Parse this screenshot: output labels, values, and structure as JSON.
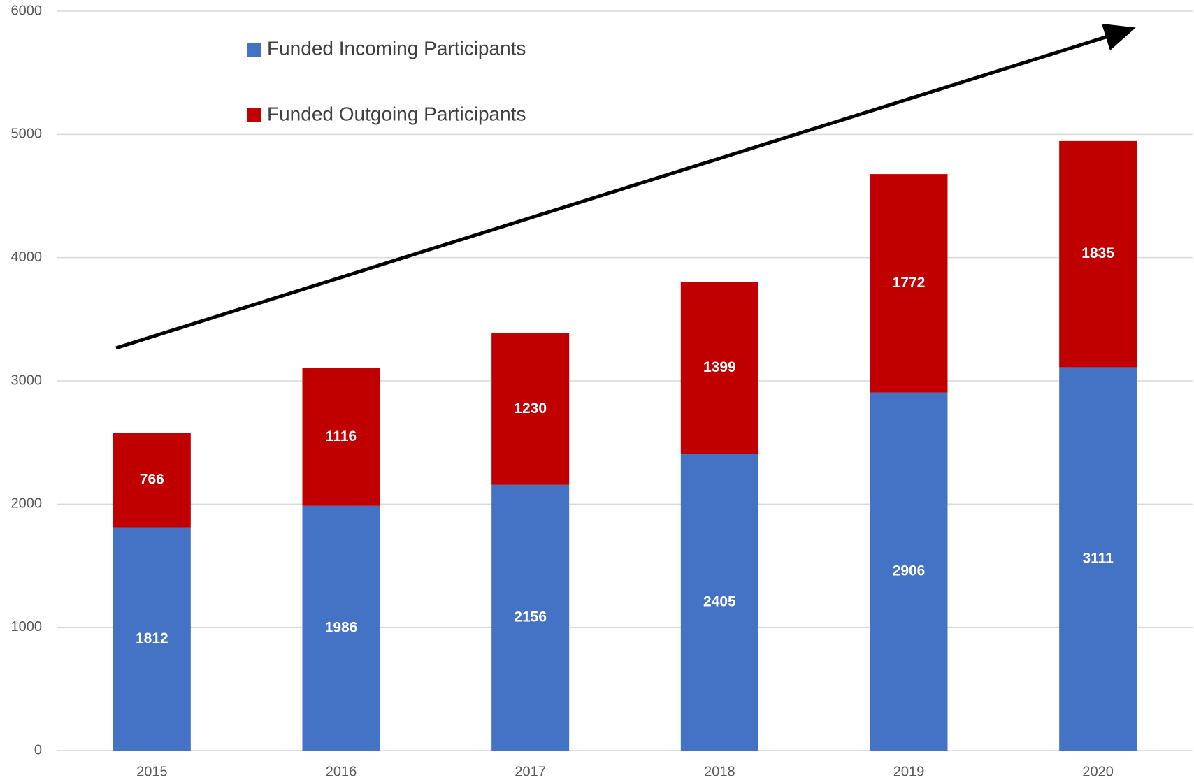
{
  "chart_data": {
    "type": "bar",
    "stacked": true,
    "categories": [
      "2015",
      "2016",
      "2017",
      "2018",
      "2019",
      "2020"
    ],
    "series": [
      {
        "name": "Funded Incoming Participants",
        "color": "#4472c4",
        "values": [
          1812,
          1986,
          2156,
          2405,
          2906,
          3111
        ]
      },
      {
        "name": "Funded Outgoing Participants",
        "color": "#c00000",
        "values": [
          766,
          1116,
          1230,
          1399,
          1772,
          1835
        ]
      }
    ],
    "ylim": [
      0,
      6000
    ],
    "yticks": [
      0,
      1000,
      2000,
      3000,
      4000,
      5000,
      6000
    ],
    "grid": true
  }
}
